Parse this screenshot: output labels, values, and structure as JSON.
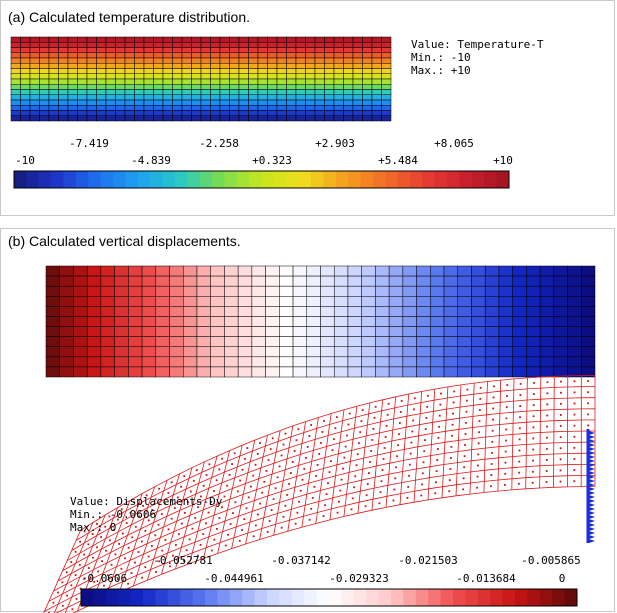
{
  "panel_a": {
    "caption": "(a) Calculated temperature distribution.",
    "info": {
      "value_label": "Value: Temperature-T",
      "min_label": "Min.: -10",
      "max_label": "Max.: +10"
    },
    "colorbar": {
      "ticks_top": [
        "-7.419",
        "-2.258",
        "+2.903",
        "+8.065"
      ],
      "ticks_bottom": [
        "-10",
        "-4.839",
        "+0.323",
        "+5.484",
        "+10"
      ]
    },
    "colors": [
      "#141a7a",
      "#1e32c8",
      "#1e6ef0",
      "#1ea0f0",
      "#28c8c8",
      "#78dc50",
      "#c8e61e",
      "#f0dc1e",
      "#f5a01e",
      "#f06e28",
      "#e63c32",
      "#c81e2d",
      "#a0141e"
    ]
  },
  "panel_b": {
    "caption": "(b) Calculated vertical displacements.",
    "info": {
      "value_label": "Value: Displacements-Dy",
      "min_label": "Min.: -0.0606",
      "max_label": "Max.: 0"
    },
    "colorbar": {
      "ticks_top": [
        "-0.052781",
        "-0.037142",
        "-0.021503",
        "-0.005865"
      ],
      "ticks_bottom": [
        "-0.0606",
        "-0.044961",
        "-0.029323",
        "-0.013684",
        "0"
      ]
    },
    "colors": [
      "#0a0a7a",
      "#1428c8",
      "#5a78f0",
      "#c8d2ff",
      "#ffffff",
      "#ffc8c8",
      "#f05050",
      "#c81414",
      "#5a0a0a"
    ]
  }
}
